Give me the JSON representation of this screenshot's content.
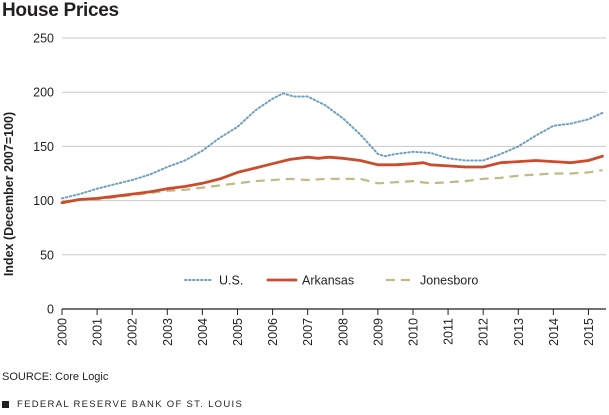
{
  "title": "House Prices",
  "source": "SOURCE: Core Logic",
  "footer": "FEDERAL RESERVE BANK OF ST. LOUIS",
  "colors": {
    "us": "#6f9fbf",
    "arkansas": "#cc4b2c",
    "jonesboro": "#c2ba85",
    "grid": "#c9c9c9",
    "axis": "#231f20"
  },
  "chart_data": {
    "type": "line",
    "title": "House Prices",
    "ylabel": "Index (December 2007=100)",
    "xlabel": "",
    "ylim": [
      0,
      250
    ],
    "xlim": [
      2000.0,
      2015.5
    ],
    "yticks": [
      0,
      50,
      100,
      150,
      200,
      250
    ],
    "xticks": [
      "2000",
      "2001",
      "2002",
      "2003",
      "2004",
      "2005",
      "2006",
      "2007",
      "2008",
      "2009",
      "2010",
      "2011",
      "2012",
      "2013",
      "2014",
      "2015"
    ],
    "grid": "horizontal",
    "legend_position": "bottom-center",
    "series": [
      {
        "name": "U.S.",
        "style": "dotted",
        "x": [
          2000.0,
          2000.5,
          2001.0,
          2001.5,
          2002.0,
          2002.5,
          2003.0,
          2003.5,
          2004.0,
          2004.5,
          2005.0,
          2005.5,
          2006.0,
          2006.3,
          2006.6,
          2007.0,
          2007.5,
          2008.0,
          2008.5,
          2009.0,
          2009.2,
          2009.5,
          2010.0,
          2010.5,
          2011.0,
          2011.5,
          2012.0,
          2012.5,
          2013.0,
          2013.5,
          2014.0,
          2014.5,
          2015.0,
          2015.4
        ],
        "values": [
          102,
          106,
          111,
          115,
          119,
          124,
          131,
          137,
          146,
          158,
          168,
          183,
          194,
          199,
          196,
          196,
          188,
          176,
          161,
          143,
          141,
          143,
          145,
          144,
          139,
          137,
          137,
          143,
          150,
          160,
          169,
          171,
          175,
          181
        ]
      },
      {
        "name": "Arkansas",
        "style": "solid",
        "x": [
          2000.0,
          2000.5,
          2001.0,
          2001.5,
          2002.0,
          2002.5,
          2003.0,
          2003.5,
          2004.0,
          2004.5,
          2005.0,
          2005.5,
          2006.0,
          2006.5,
          2007.0,
          2007.3,
          2007.6,
          2008.0,
          2008.5,
          2009.0,
          2009.5,
          2010.0,
          2010.3,
          2010.5,
          2011.0,
          2011.5,
          2012.0,
          2012.5,
          2013.0,
          2013.5,
          2014.0,
          2014.5,
          2015.0,
          2015.4
        ],
        "values": [
          98,
          101,
          102,
          104,
          106,
          108,
          111,
          113,
          116,
          120,
          126,
          130,
          134,
          138,
          140,
          139,
          140,
          139,
          137,
          133,
          133,
          134,
          135,
          133,
          132,
          131,
          131,
          135,
          136,
          137,
          136,
          135,
          137,
          141
        ]
      },
      {
        "name": "Jonesboro",
        "style": "dashed",
        "x": [
          2000.0,
          2000.5,
          2001.0,
          2001.5,
          2002.0,
          2002.5,
          2003.0,
          2003.5,
          2004.0,
          2004.5,
          2005.0,
          2005.5,
          2006.0,
          2006.5,
          2007.0,
          2007.5,
          2008.0,
          2008.5,
          2009.0,
          2009.5,
          2010.0,
          2010.5,
          2011.0,
          2011.5,
          2012.0,
          2012.5,
          2013.0,
          2013.5,
          2014.0,
          2014.5,
          2015.0,
          2015.4
        ],
        "values": [
          99,
          101,
          101,
          103,
          105,
          107,
          109,
          110,
          112,
          114,
          116,
          118,
          119,
          120,
          119,
          120,
          120,
          120,
          116,
          117,
          118,
          116,
          117,
          118,
          120,
          121,
          123,
          124,
          125,
          125,
          126,
          128
        ]
      }
    ]
  }
}
